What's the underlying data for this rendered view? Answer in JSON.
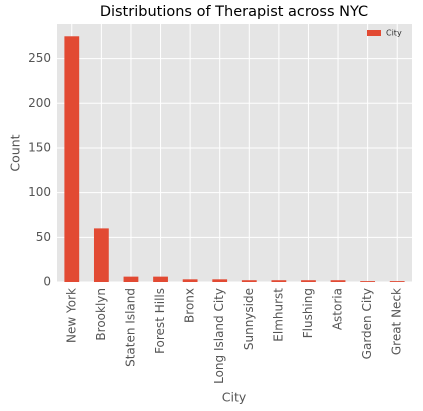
{
  "chart_data": {
    "type": "bar",
    "title": "Distributions of Therapist across NYC",
    "x_label": "City",
    "y_label": "Count",
    "categories": [
      "New York",
      "Brooklyn",
      "Staten Island",
      "Forest Hills",
      "Bronx",
      "Long Island City",
      "Sunnyside",
      "Elmhurst",
      "Flushing",
      "Astoria",
      "Garden City",
      "Great Neck"
    ],
    "series": [
      {
        "name": "City",
        "color": "#E24A33",
        "values": [
          275,
          60,
          6,
          6,
          3,
          3,
          2,
          2,
          2,
          2,
          1,
          1
        ]
      }
    ],
    "ylim": [
      0,
      288.75
    ],
    "yticks": [
      0,
      50,
      100,
      150,
      200,
      250
    ],
    "grid": true,
    "legend": "upper right"
  }
}
